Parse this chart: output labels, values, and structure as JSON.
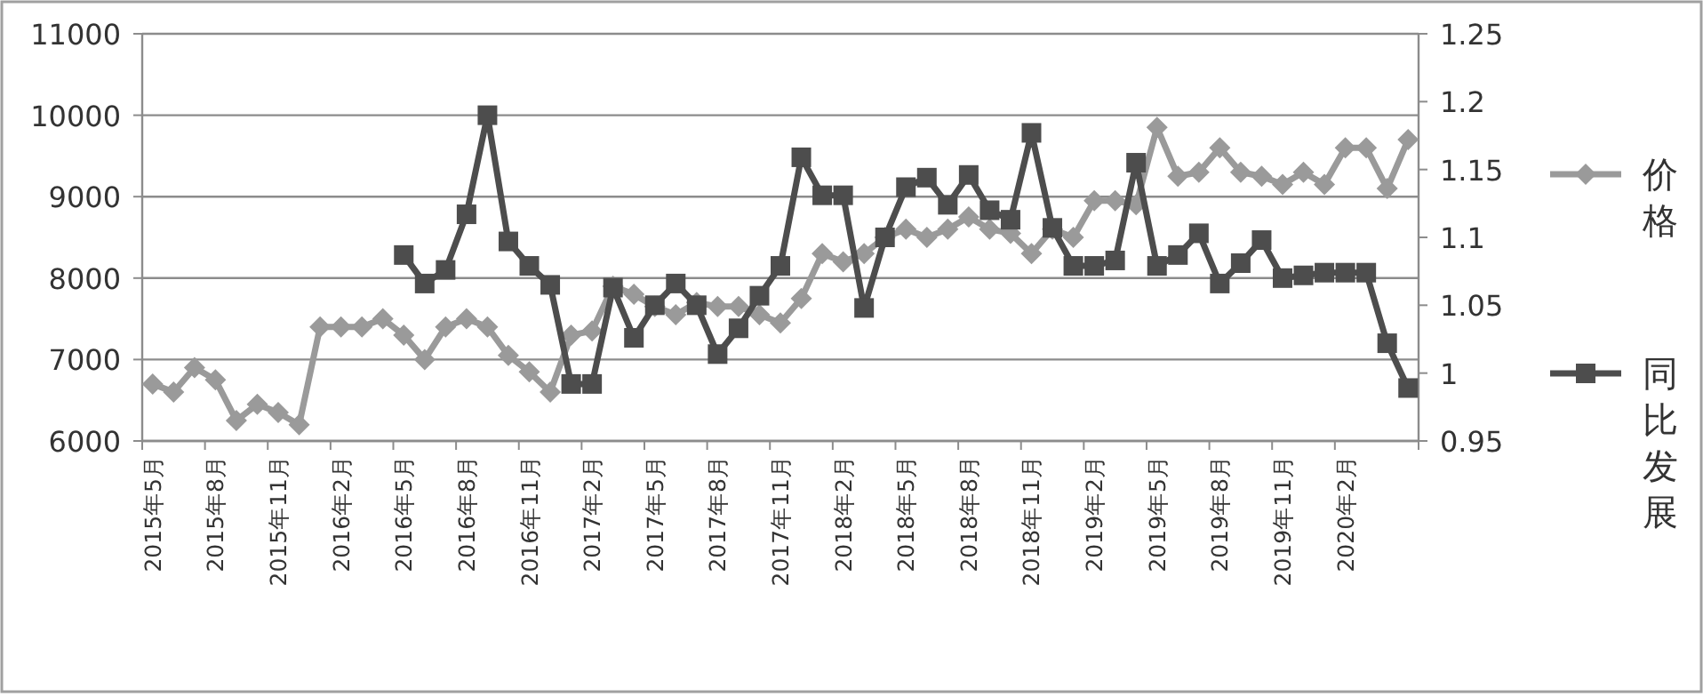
{
  "chart_data": {
    "type": "line",
    "categories": [
      "2015年5月",
      null,
      null,
      "2015年8月",
      null,
      null,
      "2015年11月",
      null,
      null,
      "2016年2月",
      null,
      null,
      "2016年5月",
      null,
      null,
      "2016年8月",
      null,
      null,
      "2016年11月",
      null,
      null,
      "2017年2月",
      null,
      null,
      "2017年5月",
      null,
      null,
      "2017年8月",
      null,
      null,
      "2017年11月",
      null,
      null,
      "2018年2月",
      null,
      null,
      "2018年5月",
      null,
      null,
      "2018年8月",
      null,
      null,
      "2018年11月",
      null,
      null,
      "2019年2月",
      null,
      null,
      "2019年5月",
      null,
      null,
      "2019年8月",
      null,
      null,
      "2019年11月",
      null,
      null,
      "2020年2月",
      null,
      null,
      null
    ],
    "series": [
      {
        "name": "价格",
        "color": "#9a9a9a",
        "marker": "diamond",
        "values": [
          6700,
          6600,
          6900,
          6750,
          6250,
          6450,
          6350,
          6200,
          7400,
          7400,
          7400,
          7500,
          7300,
          7000,
          7400,
          7500,
          7400,
          7050,
          6850,
          6600,
          7300,
          7350,
          7900,
          7800,
          7650,
          7550,
          7700,
          7650,
          7650,
          7550,
          7450,
          7750,
          8300,
          8200,
          8300,
          8500,
          8600,
          8500,
          8600,
          8750,
          8600,
          8550,
          8300,
          8600,
          8500,
          8950,
          8950,
          8900,
          9850,
          9250,
          9300,
          9600,
          9300,
          9250,
          9150,
          9300,
          9150,
          9600,
          9600,
          9100,
          9700
        ]
      },
      {
        "name": "同比发展",
        "color": "#4d4d4d",
        "marker": "square",
        "axis": "y2",
        "values": [
          null,
          null,
          null,
          null,
          null,
          null,
          null,
          null,
          null,
          null,
          null,
          null,
          1.087,
          1.066,
          1.076,
          1.117,
          1.19,
          1.097,
          1.079,
          1.065,
          0.992,
          0.992,
          1.063,
          1.026,
          1.05,
          1.066,
          1.05,
          1.014,
          1.033,
          1.057,
          1.079,
          1.159,
          1.131,
          1.131,
          1.048,
          1.1,
          1.137,
          1.144,
          1.124,
          1.146,
          1.12,
          1.113,
          1.177,
          1.107,
          1.079,
          1.079,
          1.083,
          1.155,
          1.079,
          1.087,
          1.103,
          1.066,
          1.081,
          1.098,
          1.07,
          1.072,
          1.074,
          1.074,
          1.074,
          1.022,
          0.989
        ]
      }
    ],
    "ylim": [
      6000,
      11000
    ],
    "yticks": [
      6000,
      7000,
      8000,
      9000,
      10000,
      11000
    ],
    "y2lim": [
      0.95,
      1.25
    ],
    "y2ticks": [
      0.95,
      1,
      1.05,
      1.1,
      1.15,
      1.2,
      1.25
    ],
    "grid": "y",
    "legend": "right"
  }
}
